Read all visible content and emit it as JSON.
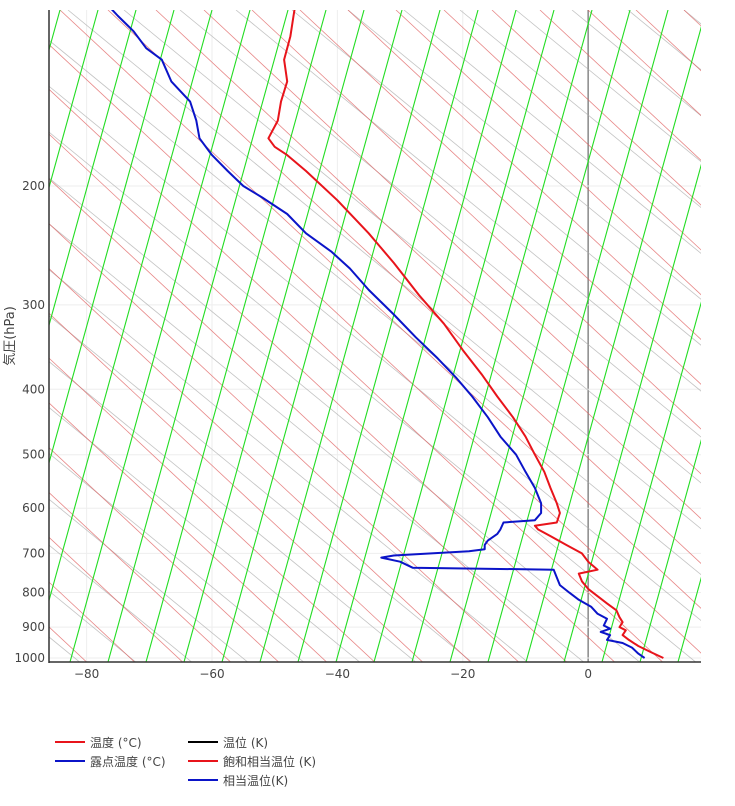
{
  "chart_data": {
    "type": "line",
    "title": "",
    "ylabel": "気圧(hPa)",
    "xlabel": "",
    "xlim": [
      -86,
      18
    ],
    "ylim": [
      1000,
      100
    ],
    "y_scale": "log",
    "x_ticks": [
      -80,
      -60,
      -40,
      -20,
      0
    ],
    "x_tick_labels": [
      "−80",
      "−60",
      "−40",
      "−20",
      "0"
    ],
    "y_ticks": [
      200,
      300,
      400,
      500,
      600,
      700,
      800,
      900,
      1000
    ],
    "y_tick_labels": [
      "200",
      "300",
      "400",
      "500",
      "600",
      "700",
      "800",
      "900",
      "1000"
    ],
    "grid": true,
    "skew": true,
    "legend_placement": "bottom-left",
    "series": [
      {
        "name": "温度 (°C)",
        "color": "#e8141b",
        "points": [
          [
            12,
            1000
          ],
          [
            10,
            980
          ],
          [
            8,
            960
          ],
          [
            6.5,
            940
          ],
          [
            5.5,
            925
          ],
          [
            6,
            910
          ],
          [
            5,
            900
          ],
          [
            5.5,
            885
          ],
          [
            5,
            870
          ],
          [
            4.5,
            850
          ],
          [
            3,
            830
          ],
          [
            1.5,
            810
          ],
          [
            0,
            790
          ],
          [
            -1,
            770
          ],
          [
            -1.5,
            750
          ],
          [
            1.5,
            740
          ],
          [
            0,
            720
          ],
          [
            -1,
            700
          ],
          [
            -3.5,
            680
          ],
          [
            -6,
            660
          ],
          [
            -8,
            645
          ],
          [
            -8.5,
            637
          ],
          [
            -5,
            630
          ],
          [
            -4.5,
            610
          ],
          [
            -5,
            590
          ],
          [
            -6,
            560
          ],
          [
            -7,
            530
          ],
          [
            -8.5,
            500
          ],
          [
            -10,
            470
          ],
          [
            -12,
            440
          ],
          [
            -14.5,
            410
          ],
          [
            -17,
            380
          ],
          [
            -20,
            350
          ],
          [
            -23,
            320
          ],
          [
            -27,
            290
          ],
          [
            -31,
            260
          ],
          [
            -35,
            235
          ],
          [
            -40,
            210
          ],
          [
            -45,
            190
          ],
          [
            -48,
            180
          ],
          [
            -50,
            175
          ],
          [
            -51,
            170
          ],
          [
            -49.5,
            160
          ],
          [
            -49,
            150
          ],
          [
            -48,
            140
          ],
          [
            -48.5,
            130
          ],
          [
            -47.5,
            120
          ],
          [
            -47,
            112
          ],
          [
            -46.5,
            105
          ],
          [
            -46,
            100
          ]
        ]
      },
      {
        "name": "露点温度 (°C)",
        "color": "#0b14c8",
        "points": [
          [
            9,
            1000
          ],
          [
            8,
            985
          ],
          [
            7,
            965
          ],
          [
            5.5,
            950
          ],
          [
            3,
            940
          ],
          [
            3.5,
            925
          ],
          [
            2,
            915
          ],
          [
            3.5,
            905
          ],
          [
            2.5,
            895
          ],
          [
            3,
            875
          ],
          [
            1.5,
            860
          ],
          [
            0.5,
            840
          ],
          [
            -1.5,
            820
          ],
          [
            -3,
            800
          ],
          [
            -4.5,
            780
          ],
          [
            -5,
            760
          ],
          [
            -5.5,
            740
          ],
          [
            -28,
            735
          ],
          [
            -30,
            720
          ],
          [
            -33,
            710
          ],
          [
            -31,
            705
          ],
          [
            -19,
            695
          ],
          [
            -16.5,
            690
          ],
          [
            -16.5,
            680
          ],
          [
            -16,
            670
          ],
          [
            -14.5,
            655
          ],
          [
            -14,
            645
          ],
          [
            -13.5,
            630
          ],
          [
            -8.5,
            625
          ],
          [
            -7.5,
            610
          ],
          [
            -7.5,
            590
          ],
          [
            -8.5,
            560
          ],
          [
            -10,
            530
          ],
          [
            -11.5,
            500
          ],
          [
            -14,
            470
          ],
          [
            -16,
            440
          ],
          [
            -18.5,
            410
          ],
          [
            -21,
            385
          ],
          [
            -24,
            360
          ],
          [
            -27.5,
            335
          ],
          [
            -31,
            310
          ],
          [
            -35,
            285
          ],
          [
            -38,
            265
          ],
          [
            -41,
            250
          ],
          [
            -45,
            235
          ],
          [
            -48,
            220
          ],
          [
            -52,
            208
          ],
          [
            -55,
            200
          ],
          [
            -57.5,
            190
          ],
          [
            -60,
            180
          ],
          [
            -62,
            170
          ],
          [
            -62.5,
            160
          ],
          [
            -63.5,
            150
          ],
          [
            -66.5,
            140
          ],
          [
            -68,
            130
          ],
          [
            -70.5,
            125
          ],
          [
            -72.5,
            118
          ],
          [
            -75,
            112
          ],
          [
            -77,
            107
          ],
          [
            -78,
            103
          ],
          [
            -77.5,
            100
          ],
          [
            -76,
            98
          ]
        ]
      }
    ],
    "legend": [
      {
        "name": "温度 (°C)",
        "color": "#e8141b"
      },
      {
        "name": "露点温度 (°C)",
        "color": "#0b14c8"
      },
      {
        "name": "温位 (K)",
        "color": "#000000"
      },
      {
        "name": "飽和相当温位 (K)",
        "color": "#e8141b"
      },
      {
        "name": "相当温位(K)",
        "color": "#0b14c8"
      }
    ],
    "background_lines": {
      "dry_adiabat_color": "#aaaaaa",
      "moist_adiabat_color": "#e06060",
      "mixing_ratio_color": "#22dd22",
      "zero_line_color": "#888888"
    }
  }
}
